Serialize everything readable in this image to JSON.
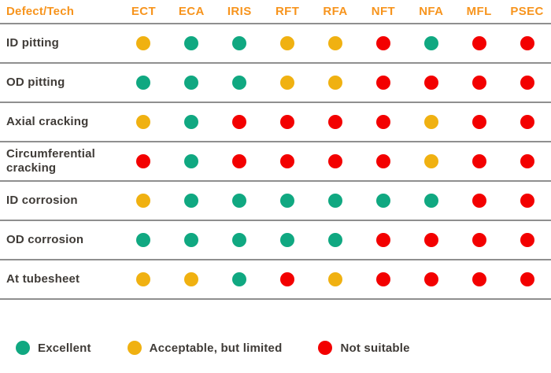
{
  "palette": {
    "header_orange": "#F7941D",
    "excellent_green": "#10A881",
    "acceptable_yellow": "#F0B111",
    "not_suitable_red": "#F30000",
    "separator_gray": "#8F8F8F",
    "text_dark": "#3F3B37",
    "background": "#FFFFFF"
  },
  "chart_data": {
    "type": "table",
    "title": "",
    "corner_label": "Defect/Tech",
    "columns": [
      "ECT",
      "ECA",
      "IRIS",
      "RFT",
      "RFA",
      "NFT",
      "NFA",
      "MFL",
      "PSEC"
    ],
    "rating_colors": {
      "excellent": "#10A881",
      "acceptable": "#F0B111",
      "not_suitable": "#F30000"
    },
    "rows": [
      {
        "label": "ID pitting",
        "ratings": [
          "acceptable",
          "excellent",
          "excellent",
          "acceptable",
          "acceptable",
          "not_suitable",
          "excellent",
          "not_suitable",
          "not_suitable"
        ]
      },
      {
        "label": "OD pitting",
        "ratings": [
          "excellent",
          "excellent",
          "excellent",
          "acceptable",
          "acceptable",
          "not_suitable",
          "not_suitable",
          "not_suitable",
          "not_suitable"
        ]
      },
      {
        "label": "Axial cracking",
        "ratings": [
          "acceptable",
          "excellent",
          "not_suitable",
          "not_suitable",
          "not_suitable",
          "not_suitable",
          "acceptable",
          "not_suitable",
          "not_suitable"
        ]
      },
      {
        "label": "Circumferential cracking",
        "ratings": [
          "not_suitable",
          "excellent",
          "not_suitable",
          "not_suitable",
          "not_suitable",
          "not_suitable",
          "acceptable",
          "not_suitable",
          "not_suitable"
        ]
      },
      {
        "label": "ID corrosion",
        "ratings": [
          "acceptable",
          "excellent",
          "excellent",
          "excellent",
          "excellent",
          "excellent",
          "excellent",
          "not_suitable",
          "not_suitable"
        ]
      },
      {
        "label": "OD corrosion",
        "ratings": [
          "excellent",
          "excellent",
          "excellent",
          "excellent",
          "excellent",
          "not_suitable",
          "not_suitable",
          "not_suitable",
          "not_suitable"
        ]
      },
      {
        "label": "At tubesheet",
        "ratings": [
          "acceptable",
          "acceptable",
          "excellent",
          "not_suitable",
          "acceptable",
          "not_suitable",
          "not_suitable",
          "not_suitable",
          "not_suitable"
        ]
      }
    ]
  },
  "legend": {
    "items": [
      {
        "key": "excellent",
        "label": "Excellent"
      },
      {
        "key": "acceptable",
        "label": "Acceptable, but limited"
      },
      {
        "key": "not_suitable",
        "label": "Not suitable"
      }
    ]
  }
}
